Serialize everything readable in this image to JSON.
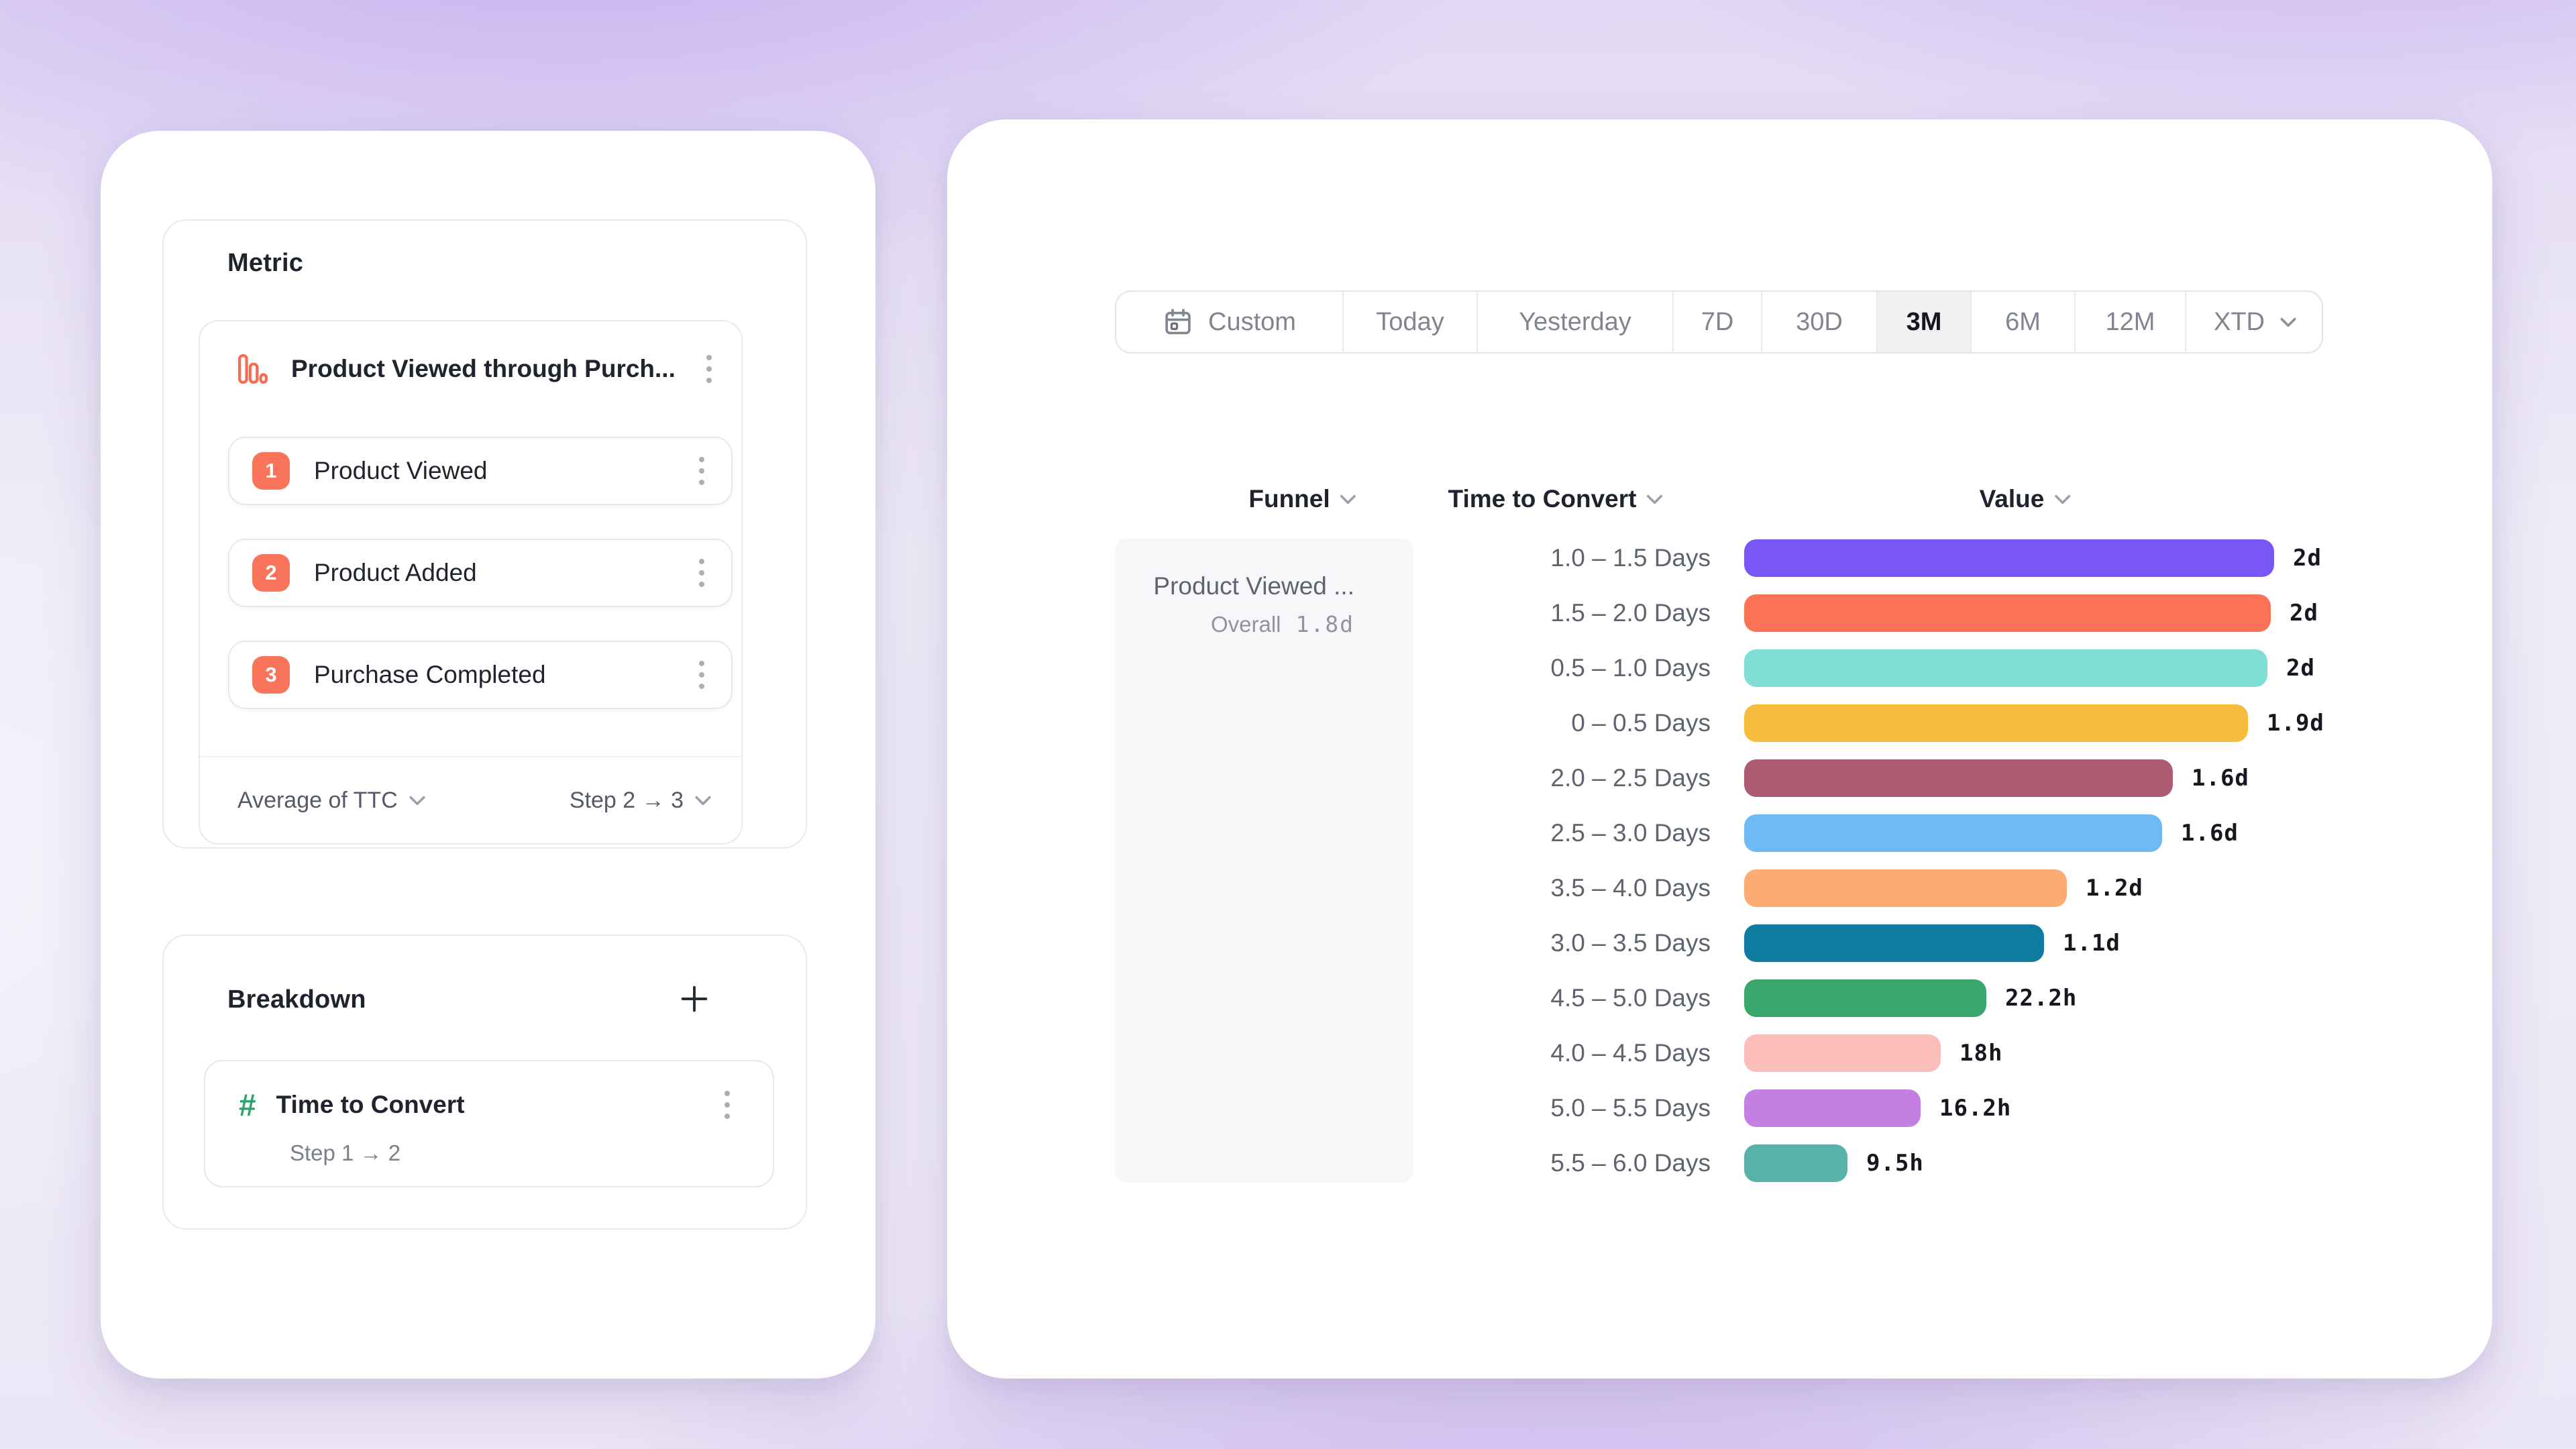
{
  "left_panel": {
    "metric": {
      "heading": "Metric",
      "funnel_title": "Product Viewed through Purch...",
      "steps": [
        {
          "number": "1",
          "label": "Product Viewed"
        },
        {
          "number": "2",
          "label": "Product Added"
        },
        {
          "number": "3",
          "label": "Purchase Completed"
        }
      ],
      "aggregation": "Average of TTC",
      "step_range": "Step 2 → 3"
    },
    "breakdown": {
      "heading": "Breakdown",
      "item_label": "Time to Convert",
      "item_sublabel": "Step 1 → 2"
    }
  },
  "right_panel": {
    "date_tabs": {
      "selected": "3M",
      "items": [
        {
          "label": "Custom"
        },
        {
          "label": "Today"
        },
        {
          "label": "Yesterday"
        },
        {
          "label": "7D"
        },
        {
          "label": "30D"
        },
        {
          "label": "3M"
        },
        {
          "label": "6M"
        },
        {
          "label": "12M"
        },
        {
          "label": "XTD"
        }
      ]
    },
    "table": {
      "headers": {
        "funnel": "Funnel",
        "time_to_convert": "Time to Convert",
        "value": "Value"
      },
      "funnel_cell": {
        "title": "Product Viewed ...",
        "overall_label": "Overall",
        "overall_value": "1.8d"
      },
      "rows": [
        {
          "bucket": "1.0 – 1.5 Days",
          "value": "2d",
          "hours": 48.6,
          "color": "#7957f7"
        },
        {
          "bucket": "1.5 – 2.0 Days",
          "value": "2d",
          "hours": 48.3,
          "color": "#fc7257"
        },
        {
          "bucket": "0.5 – 1.0 Days",
          "value": "2d",
          "hours": 48.0,
          "color": "#7fdfd4"
        },
        {
          "bucket": "0 – 0.5 Days",
          "value": "1.9d",
          "hours": 46.2,
          "color": "#f8bc3d"
        },
        {
          "bucket": "2.0 – 2.5 Days",
          "value": "1.6d",
          "hours": 39.3,
          "color": "#ae5a71"
        },
        {
          "bucket": "2.5 – 3.0 Days",
          "value": "1.6d",
          "hours": 38.3,
          "color": "#6fb9f4"
        },
        {
          "bucket": "3.5 – 4.0 Days",
          "value": "1.2d",
          "hours": 29.6,
          "color": "#fcac73"
        },
        {
          "bucket": "3.0 – 3.5 Days",
          "value": "1.1d",
          "hours": 27.5,
          "color": "#107ba1"
        },
        {
          "bucket": "4.5 – 5.0 Days",
          "value": "22.2h",
          "hours": 22.2,
          "color": "#39a76d"
        },
        {
          "bucket": "4.0 – 4.5 Days",
          "value": "18h",
          "hours": 18.0,
          "color": "#fcbeb8"
        },
        {
          "bucket": "5.0 – 5.5 Days",
          "value": "16.2h",
          "hours": 16.2,
          "color": "#c57ee1"
        },
        {
          "bucket": "5.5 – 6.0 Days",
          "value": "9.5h",
          "hours": 9.5,
          "color": "#58b2aa"
        }
      ]
    }
  },
  "chart_data": {
    "type": "bar",
    "orientation": "horizontal",
    "title": "",
    "xlabel": "Value",
    "ylabel": "Time to Convert",
    "legend": false,
    "group_label": "Product Viewed ...",
    "group_overall": "1.8d",
    "value_axis_max_hours": 48.6,
    "categories": [
      "1.0 – 1.5 Days",
      "1.5 – 2.0 Days",
      "0.5 – 1.0 Days",
      "0 – 0.5 Days",
      "2.0 – 2.5 Days",
      "2.5 – 3.0 Days",
      "3.5 – 4.0 Days",
      "3.0 – 3.5 Days",
      "4.5 – 5.0 Days",
      "4.0 – 4.5 Days",
      "5.0 – 5.5 Days",
      "5.5 – 6.0 Days"
    ],
    "series": [
      {
        "name": "Average of TTC (Step 2 → 3)",
        "values_hours": [
          48.6,
          48.3,
          48.0,
          46.2,
          39.3,
          38.3,
          29.6,
          27.5,
          22.2,
          18.0,
          16.2,
          9.5
        ],
        "labels": [
          "2d",
          "2d",
          "2d",
          "1.9d",
          "1.6d",
          "1.6d",
          "1.2d",
          "1.1d",
          "22.2h",
          "18h",
          "16.2h",
          "9.5h"
        ],
        "colors": [
          "#7957f7",
          "#fc7257",
          "#7fdfd4",
          "#f8bc3d",
          "#ae5a71",
          "#6fb9f4",
          "#fcac73",
          "#107ba1",
          "#39a76d",
          "#fcbeb8",
          "#c57ee1",
          "#58b2aa"
        ]
      }
    ]
  }
}
